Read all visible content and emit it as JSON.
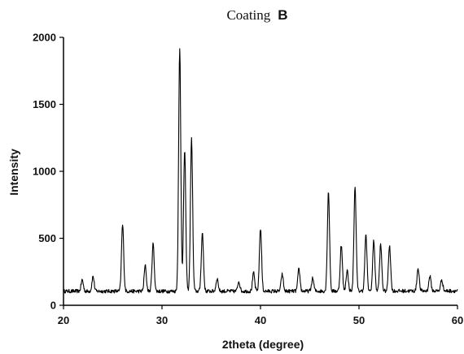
{
  "chart_data": {
    "type": "line",
    "title": "Coating",
    "title_bold_suffix": "B",
    "xlabel": "2theta (degree)",
    "ylabel": "Intensity",
    "xlim": [
      20,
      60
    ],
    "ylim": [
      0,
      2000
    ],
    "x_ticks": [
      20,
      30,
      40,
      50,
      60
    ],
    "y_ticks": [
      0,
      500,
      1000,
      1500,
      2000
    ],
    "grid": false,
    "legend": "none",
    "line_color": "#000000",
    "baseline": 105,
    "noise_amplitude": 14,
    "peaks": [
      {
        "x": 21.9,
        "y": 190
      },
      {
        "x": 23.0,
        "y": 215
      },
      {
        "x": 26.0,
        "y": 600
      },
      {
        "x": 28.3,
        "y": 295
      },
      {
        "x": 29.1,
        "y": 460
      },
      {
        "x": 31.8,
        "y": 1910
      },
      {
        "x": 32.3,
        "y": 1160
      },
      {
        "x": 33.0,
        "y": 1240
      },
      {
        "x": 34.1,
        "y": 540
      },
      {
        "x": 35.6,
        "y": 200
      },
      {
        "x": 37.8,
        "y": 180
      },
      {
        "x": 39.3,
        "y": 240
      },
      {
        "x": 40.0,
        "y": 575
      },
      {
        "x": 42.2,
        "y": 230
      },
      {
        "x": 43.9,
        "y": 270
      },
      {
        "x": 45.3,
        "y": 200
      },
      {
        "x": 46.9,
        "y": 850
      },
      {
        "x": 48.2,
        "y": 450
      },
      {
        "x": 48.8,
        "y": 260
      },
      {
        "x": 49.6,
        "y": 890
      },
      {
        "x": 50.7,
        "y": 520
      },
      {
        "x": 51.5,
        "y": 480
      },
      {
        "x": 52.2,
        "y": 450
      },
      {
        "x": 53.1,
        "y": 450
      },
      {
        "x": 56.0,
        "y": 275
      },
      {
        "x": 57.2,
        "y": 215
      },
      {
        "x": 58.4,
        "y": 190
      }
    ]
  }
}
